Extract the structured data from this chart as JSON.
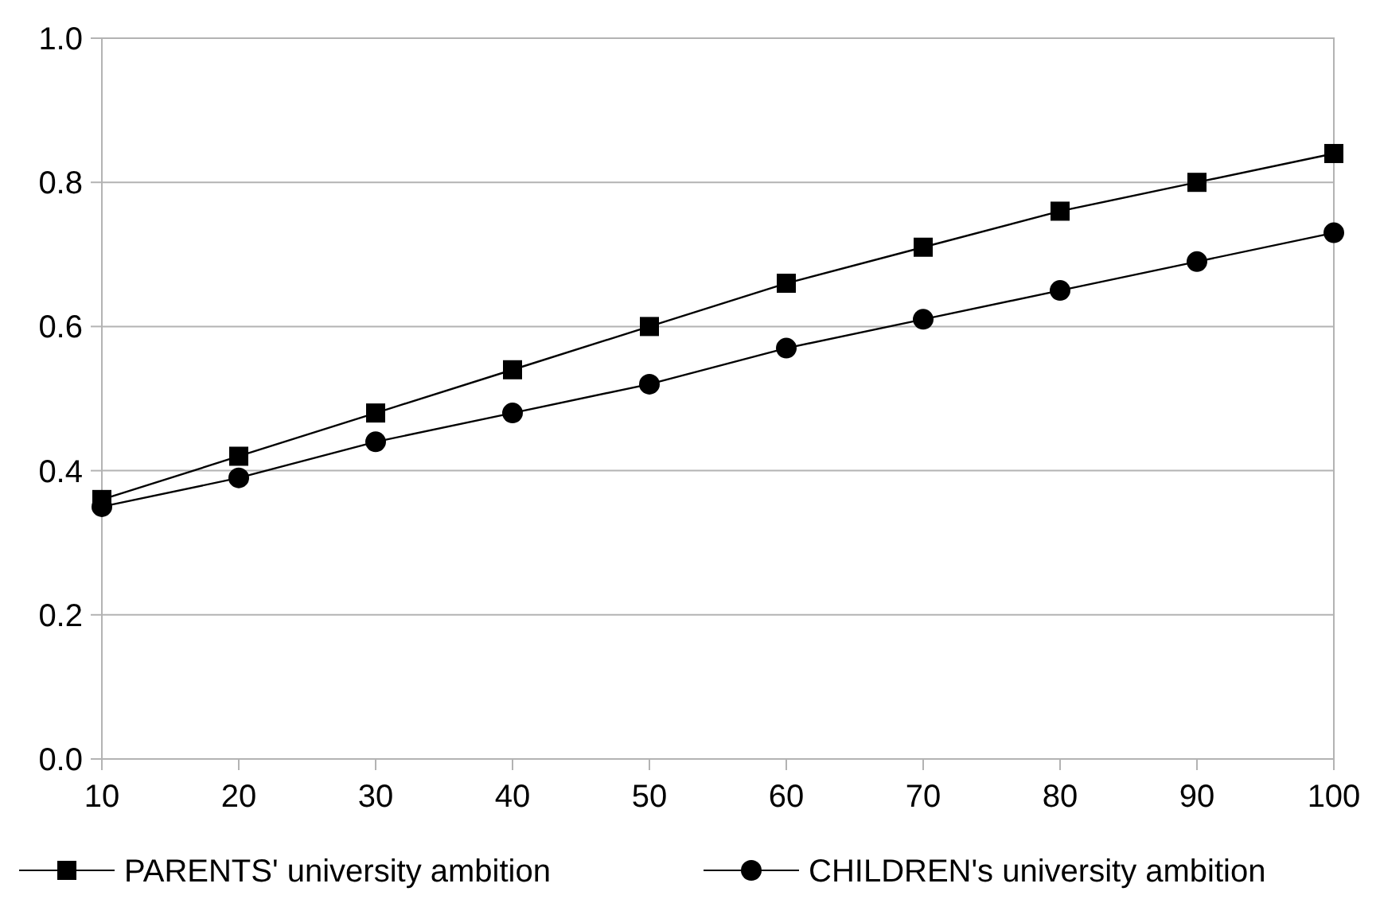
{
  "chart_data": {
    "type": "line",
    "x": [
      10,
      20,
      30,
      40,
      50,
      60,
      70,
      80,
      90,
      100
    ],
    "xlim": [
      10,
      100
    ],
    "xticks": [
      10,
      20,
      30,
      40,
      50,
      60,
      70,
      80,
      90,
      100
    ],
    "ylim": [
      0,
      1
    ],
    "yticks": [
      {
        "value": 0,
        "label": "0.0"
      },
      {
        "value": 0.2,
        "label": "0.2"
      },
      {
        "value": 0.4,
        "label": "0.4"
      },
      {
        "value": 0.6,
        "label": "0.6"
      },
      {
        "value": 0.8,
        "label": "0.8"
      },
      {
        "value": 1,
        "label": "1.0"
      }
    ],
    "grid": "y",
    "legend": "bottom",
    "line_style": "solid",
    "series": [
      {
        "name": "PARENTS' university ambition",
        "color": "#000000",
        "marker": "square",
        "values": [
          0.36,
          0.42,
          0.48,
          0.54,
          0.6,
          0.66,
          0.71,
          0.76,
          0.8,
          0.84
        ]
      },
      {
        "name": "CHILDREN's university ambition",
        "color": "#000000",
        "marker": "circle",
        "values": [
          0.35,
          0.39,
          0.44,
          0.48,
          0.52,
          0.57,
          0.61,
          0.65,
          0.69,
          0.73
        ]
      }
    ]
  }
}
